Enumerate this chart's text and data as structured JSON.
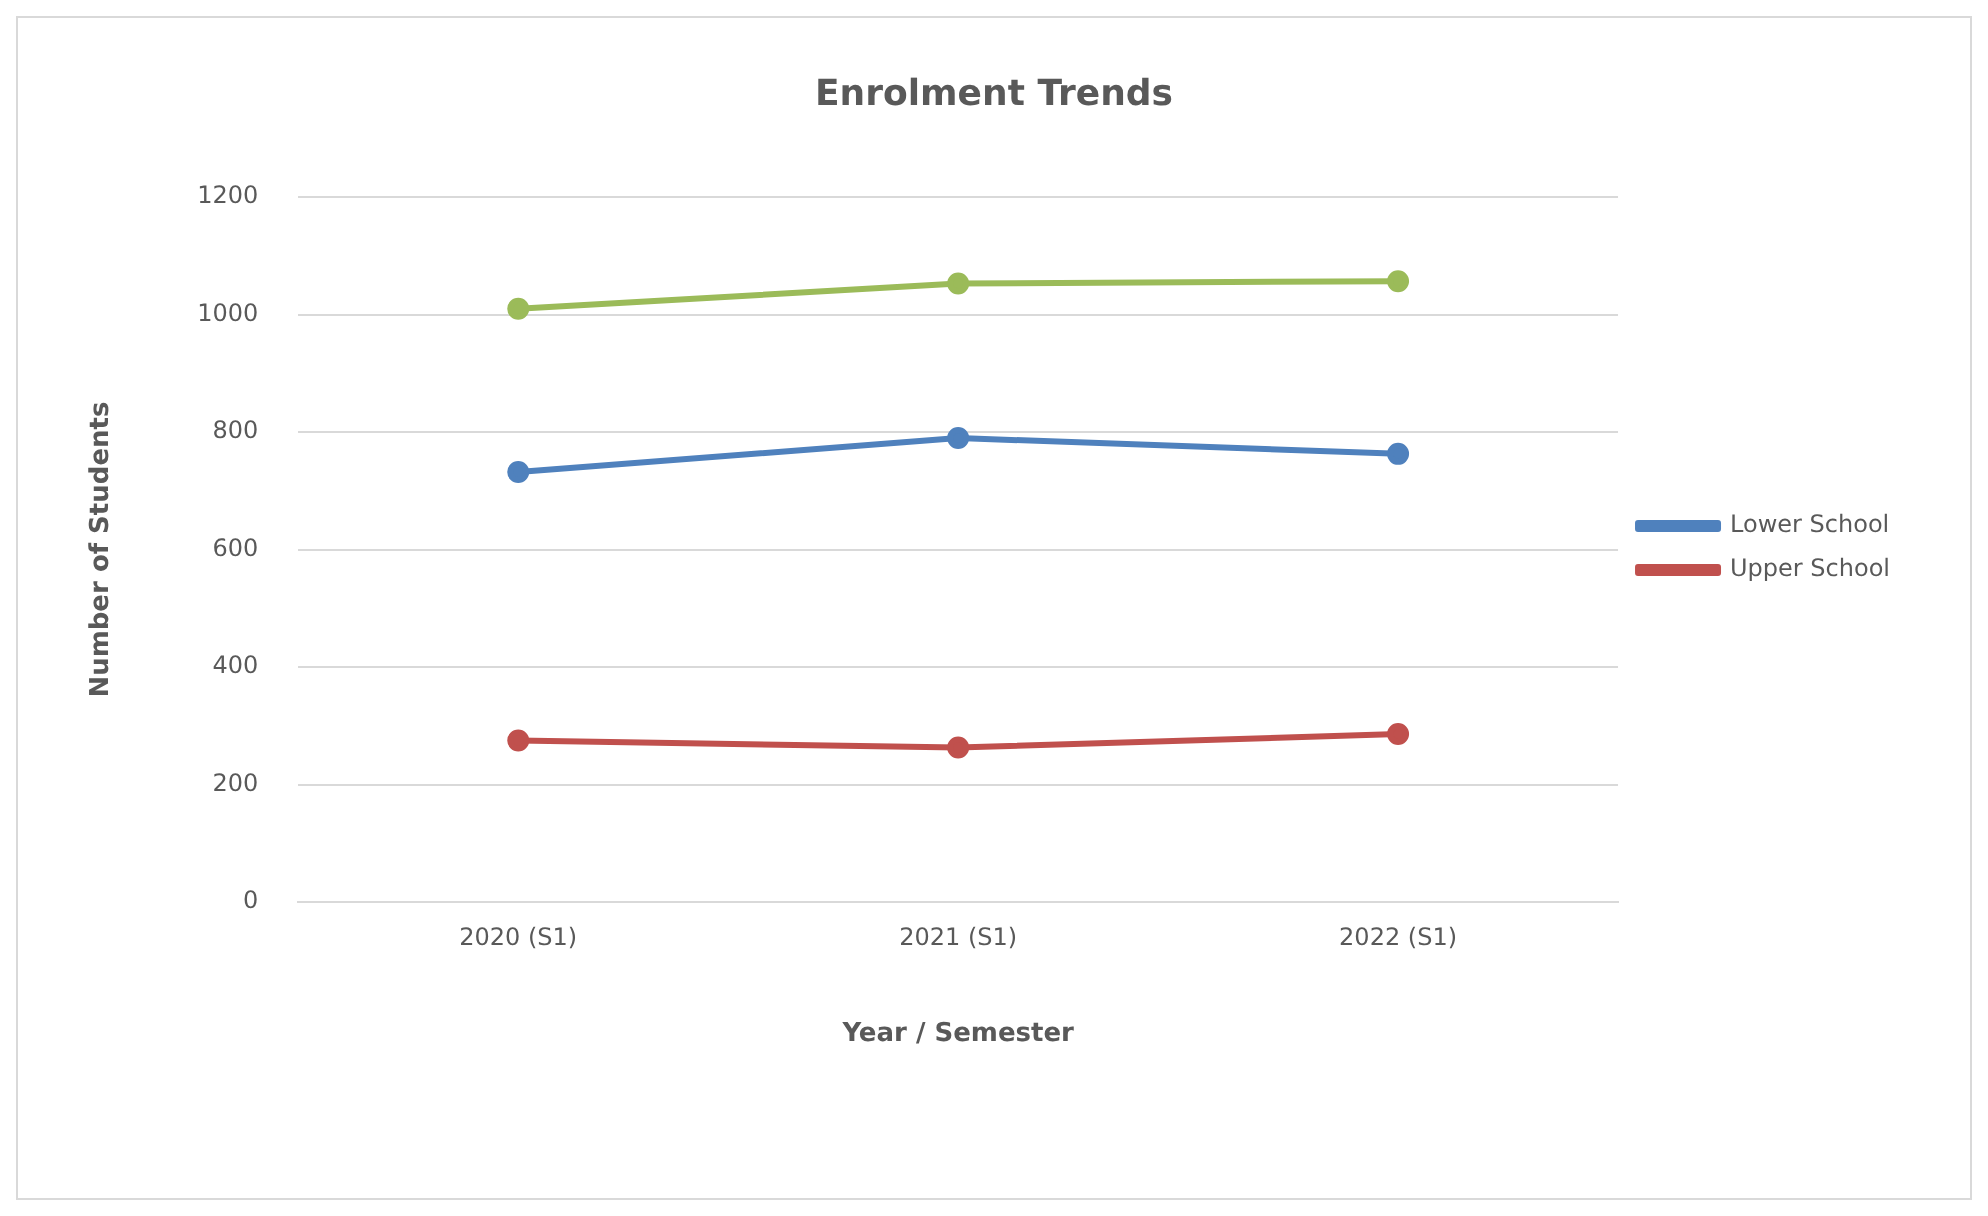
{
  "chart_data": {
    "type": "line",
    "title": "Enrolment Trends",
    "xlabel": "Year / Semester",
    "ylabel": "Number of Students",
    "categories": [
      "2020 (S1)",
      "2021 (S1)",
      "2022 (S1)"
    ],
    "series": [
      {
        "color": "#9bbb59",
        "values": [
          1010,
          1053,
          1057
        ]
      },
      {
        "name": "Lower School",
        "color": "#4f81bd",
        "values": [
          732,
          790,
          763
        ]
      },
      {
        "name": "Upper School",
        "color": "#c0504d",
        "values": [
          275,
          263,
          286
        ]
      }
    ],
    "ylim": [
      0,
      1200
    ],
    "yticks": [
      0,
      200,
      400,
      600,
      800,
      1000,
      1200
    ],
    "grid": "y",
    "legend": "right",
    "marker": "circle",
    "line_style": "solid"
  }
}
